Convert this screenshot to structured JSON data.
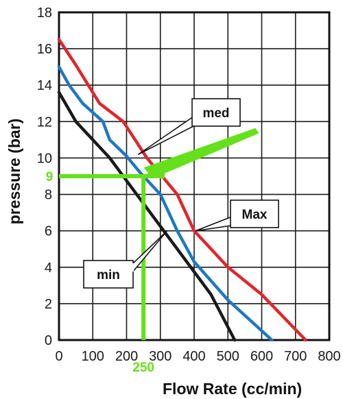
{
  "chart_data": {
    "type": "line",
    "xlabel": "Flow Rate (cc/min)",
    "ylabel": "pressure (bar)",
    "xlim": [
      0,
      800
    ],
    "ylim": [
      0,
      18
    ],
    "x_ticks": [
      "0",
      "100",
      "200",
      "300",
      "400",
      "500",
      "600",
      "700",
      "800"
    ],
    "y_ticks": [
      "0",
      "2",
      "4",
      "6",
      "8",
      "10",
      "12",
      "14",
      "16",
      "18"
    ],
    "grid": true,
    "series": [
      {
        "name": "Max",
        "color": "#e0262b",
        "x": [
          0,
          50,
          120,
          190,
          260,
          350,
          400,
          500,
          600,
          730
        ],
        "y": [
          16.5,
          15.1,
          13.0,
          12.0,
          10.0,
          8.0,
          6.0,
          4.0,
          2.5,
          0
        ]
      },
      {
        "name": "med",
        "color": "#1f78c1",
        "x": [
          0,
          30,
          70,
          130,
          150,
          200,
          240,
          300,
          350,
          400,
          500,
          630
        ],
        "y": [
          15.0,
          14.0,
          13.0,
          12.0,
          11.0,
          10.1,
          9.2,
          8.0,
          6.0,
          4.3,
          2.2,
          0
        ]
      },
      {
        "name": "min",
        "color": "#1a1a1a",
        "x": [
          0,
          50,
          150,
          250,
          350,
          450,
          520
        ],
        "y": [
          13.6,
          12.0,
          10.0,
          7.5,
          5.0,
          2.5,
          0
        ]
      }
    ],
    "annotations": {
      "highlight_x": 250,
      "highlight_y": 9,
      "highlight_x_label": "250",
      "highlight_y_label": "9",
      "highlight_color": "#66e01c",
      "callouts": [
        "med",
        "Max",
        "min"
      ]
    }
  }
}
